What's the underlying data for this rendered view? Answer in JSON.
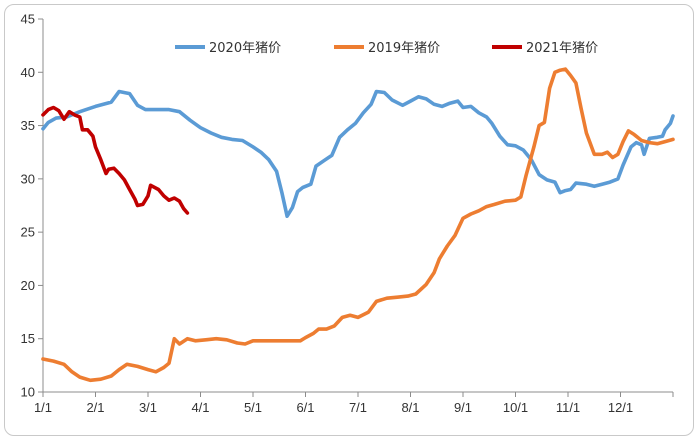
{
  "chart_data": {
    "type": "line",
    "title": "",
    "xlabel": "",
    "ylabel": "",
    "ylim": [
      10,
      45
    ],
    "yticks": [
      10,
      15,
      20,
      25,
      30,
      35,
      40,
      45
    ],
    "xlim": [
      0,
      12
    ],
    "xticks": [
      {
        "x": 0,
        "label": "1/1"
      },
      {
        "x": 1,
        "label": "2/1"
      },
      {
        "x": 2,
        "label": "3/1"
      },
      {
        "x": 3,
        "label": "4/1"
      },
      {
        "x": 4,
        "label": "5/1"
      },
      {
        "x": 5,
        "label": "6/1"
      },
      {
        "x": 6,
        "label": "7/1"
      },
      {
        "x": 7,
        "label": "8/1"
      },
      {
        "x": 8,
        "label": "9/1"
      },
      {
        "x": 9,
        "label": "10/1"
      },
      {
        "x": 10,
        "label": "11/1"
      },
      {
        "x": 11,
        "label": "12/1"
      }
    ],
    "grid": false,
    "legend_position": "top",
    "series": [
      {
        "name": "2020年猪价",
        "color": "#5b9bd5",
        "points": [
          [
            0.0,
            34.7
          ],
          [
            0.1,
            35.3
          ],
          [
            0.25,
            35.7
          ],
          [
            0.45,
            35.8
          ],
          [
            0.7,
            36.3
          ],
          [
            1.0,
            36.8
          ],
          [
            1.3,
            37.2
          ],
          [
            1.45,
            38.2
          ],
          [
            1.65,
            38.0
          ],
          [
            1.8,
            36.9
          ],
          [
            1.95,
            36.5
          ],
          [
            2.15,
            36.5
          ],
          [
            2.4,
            36.5
          ],
          [
            2.6,
            36.3
          ],
          [
            2.8,
            35.5
          ],
          [
            3.0,
            34.8
          ],
          [
            3.2,
            34.3
          ],
          [
            3.4,
            33.9
          ],
          [
            3.6,
            33.7
          ],
          [
            3.8,
            33.6
          ],
          [
            4.0,
            33.0
          ],
          [
            4.15,
            32.5
          ],
          [
            4.3,
            31.8
          ],
          [
            4.45,
            30.7
          ],
          [
            4.55,
            28.7
          ],
          [
            4.65,
            26.5
          ],
          [
            4.75,
            27.3
          ],
          [
            4.85,
            28.8
          ],
          [
            4.95,
            29.2
          ],
          [
            5.1,
            29.5
          ],
          [
            5.2,
            31.2
          ],
          [
            5.35,
            31.7
          ],
          [
            5.5,
            32.2
          ],
          [
            5.65,
            33.9
          ],
          [
            5.8,
            34.6
          ],
          [
            5.95,
            35.2
          ],
          [
            6.1,
            36.2
          ],
          [
            6.25,
            37.0
          ],
          [
            6.35,
            38.2
          ],
          [
            6.5,
            38.1
          ],
          [
            6.65,
            37.4
          ],
          [
            6.85,
            36.9
          ],
          [
            7.0,
            37.3
          ],
          [
            7.15,
            37.7
          ],
          [
            7.3,
            37.5
          ],
          [
            7.45,
            37.0
          ],
          [
            7.6,
            36.8
          ],
          [
            7.75,
            37.1
          ],
          [
            7.9,
            37.3
          ],
          [
            8.0,
            36.7
          ],
          [
            8.15,
            36.8
          ],
          [
            8.3,
            36.2
          ],
          [
            8.45,
            35.8
          ],
          [
            8.55,
            35.2
          ],
          [
            8.7,
            34.0
          ],
          [
            8.85,
            33.2
          ],
          [
            9.0,
            33.1
          ],
          [
            9.15,
            32.7
          ],
          [
            9.3,
            31.8
          ],
          [
            9.45,
            30.4
          ],
          [
            9.6,
            29.9
          ],
          [
            9.75,
            29.7
          ],
          [
            9.85,
            28.7
          ],
          [
            9.95,
            28.9
          ],
          [
            10.05,
            29.0
          ],
          [
            10.15,
            29.6
          ],
          [
            10.35,
            29.5
          ],
          [
            10.5,
            29.3
          ],
          [
            10.65,
            29.5
          ],
          [
            10.8,
            29.7
          ],
          [
            10.95,
            30.0
          ],
          [
            11.05,
            31.3
          ],
          [
            11.2,
            33.0
          ],
          [
            11.3,
            33.4
          ],
          [
            11.4,
            33.2
          ],
          [
            11.45,
            32.3
          ],
          [
            11.55,
            33.8
          ],
          [
            11.7,
            33.9
          ],
          [
            11.8,
            34.0
          ],
          [
            11.85,
            34.6
          ],
          [
            11.95,
            35.2
          ],
          [
            12.0,
            35.9
          ]
        ]
      },
      {
        "name": "2019年猪价",
        "color": "#ed7d31",
        "points": [
          [
            0.0,
            13.1
          ],
          [
            0.2,
            12.9
          ],
          [
            0.4,
            12.6
          ],
          [
            0.55,
            11.9
          ],
          [
            0.7,
            11.4
          ],
          [
            0.9,
            11.1
          ],
          [
            1.1,
            11.2
          ],
          [
            1.3,
            11.5
          ],
          [
            1.45,
            12.1
          ],
          [
            1.6,
            12.6
          ],
          [
            1.8,
            12.4
          ],
          [
            2.0,
            12.1
          ],
          [
            2.15,
            11.9
          ],
          [
            2.3,
            12.3
          ],
          [
            2.4,
            12.7
          ],
          [
            2.5,
            15.0
          ],
          [
            2.6,
            14.5
          ],
          [
            2.75,
            15.0
          ],
          [
            2.9,
            14.8
          ],
          [
            3.1,
            14.9
          ],
          [
            3.3,
            15.0
          ],
          [
            3.5,
            14.9
          ],
          [
            3.7,
            14.6
          ],
          [
            3.85,
            14.5
          ],
          [
            4.0,
            14.8
          ],
          [
            4.3,
            14.8
          ],
          [
            4.6,
            14.8
          ],
          [
            4.9,
            14.8
          ],
          [
            5.0,
            15.1
          ],
          [
            5.15,
            15.5
          ],
          [
            5.25,
            15.9
          ],
          [
            5.4,
            15.9
          ],
          [
            5.55,
            16.2
          ],
          [
            5.7,
            17.0
          ],
          [
            5.85,
            17.2
          ],
          [
            6.0,
            17.0
          ],
          [
            6.2,
            17.5
          ],
          [
            6.35,
            18.5
          ],
          [
            6.55,
            18.8
          ],
          [
            6.75,
            18.9
          ],
          [
            6.95,
            19.0
          ],
          [
            7.1,
            19.2
          ],
          [
            7.3,
            20.1
          ],
          [
            7.45,
            21.2
          ],
          [
            7.55,
            22.5
          ],
          [
            7.7,
            23.7
          ],
          [
            7.85,
            24.7
          ],
          [
            8.0,
            26.3
          ],
          [
            8.15,
            26.7
          ],
          [
            8.3,
            27.0
          ],
          [
            8.45,
            27.4
          ],
          [
            8.6,
            27.6
          ],
          [
            8.8,
            27.9
          ],
          [
            9.0,
            28.0
          ],
          [
            9.1,
            28.3
          ],
          [
            9.2,
            30.3
          ],
          [
            9.35,
            33.0
          ],
          [
            9.45,
            35.0
          ],
          [
            9.55,
            35.3
          ],
          [
            9.65,
            38.5
          ],
          [
            9.75,
            40.0
          ],
          [
            9.85,
            40.2
          ],
          [
            9.95,
            40.3
          ],
          [
            10.05,
            39.7
          ],
          [
            10.15,
            39.0
          ],
          [
            10.25,
            36.6
          ],
          [
            10.35,
            34.3
          ],
          [
            10.5,
            32.3
          ],
          [
            10.65,
            32.3
          ],
          [
            10.75,
            32.5
          ],
          [
            10.85,
            32.0
          ],
          [
            10.95,
            32.3
          ],
          [
            11.05,
            33.5
          ],
          [
            11.15,
            34.5
          ],
          [
            11.25,
            34.2
          ],
          [
            11.4,
            33.6
          ],
          [
            11.55,
            33.4
          ],
          [
            11.7,
            33.3
          ],
          [
            11.85,
            33.5
          ],
          [
            12.0,
            33.7
          ]
        ]
      },
      {
        "name": "2021年猪价",
        "color": "#c00000",
        "points": [
          [
            0.0,
            36.0
          ],
          [
            0.1,
            36.5
          ],
          [
            0.2,
            36.7
          ],
          [
            0.3,
            36.4
          ],
          [
            0.4,
            35.6
          ],
          [
            0.5,
            36.3
          ],
          [
            0.6,
            36.0
          ],
          [
            0.7,
            35.8
          ],
          [
            0.75,
            34.6
          ],
          [
            0.85,
            34.6
          ],
          [
            0.95,
            34.0
          ],
          [
            1.0,
            33.0
          ],
          [
            1.1,
            31.8
          ],
          [
            1.2,
            30.5
          ],
          [
            1.25,
            30.9
          ],
          [
            1.35,
            31.0
          ],
          [
            1.45,
            30.5
          ],
          [
            1.55,
            29.9
          ],
          [
            1.65,
            29.0
          ],
          [
            1.75,
            28.1
          ],
          [
            1.8,
            27.5
          ],
          [
            1.9,
            27.6
          ],
          [
            2.0,
            28.4
          ],
          [
            2.05,
            29.4
          ],
          [
            2.2,
            29.0
          ],
          [
            2.3,
            28.4
          ],
          [
            2.4,
            28.0
          ],
          [
            2.5,
            28.2
          ],
          [
            2.6,
            27.9
          ],
          [
            2.68,
            27.2
          ],
          [
            2.75,
            26.8
          ]
        ]
      }
    ]
  }
}
